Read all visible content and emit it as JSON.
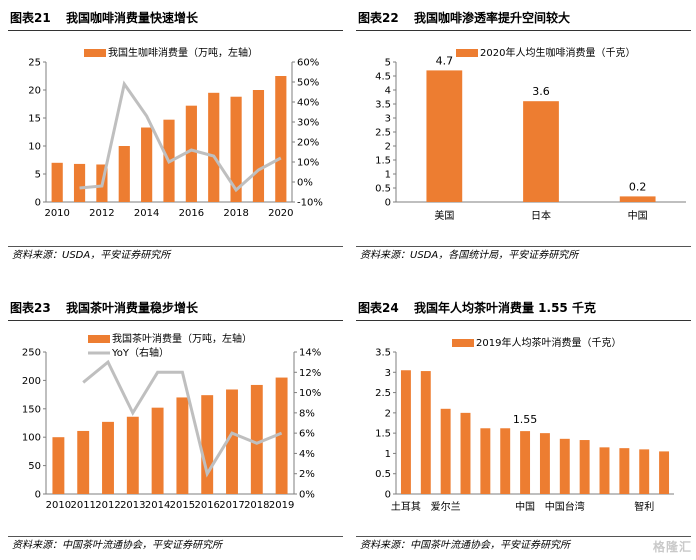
{
  "colors": {
    "bar": "#ED7D31",
    "line": "#BFBFBF",
    "axis": "#7F7F7F"
  },
  "watermark": "格隆汇",
  "panels": [
    {
      "num": "图表21",
      "title": "我国咖啡消费量快速增长",
      "source": "资料来源：USDA，平安证券研究所"
    },
    {
      "num": "图表22",
      "title": "我国咖啡渗透率提升空间较大",
      "source": "资料来源：USDA，各国统计局，平安证券研究所"
    },
    {
      "num": "图表23",
      "title": "我国茶叶消费量稳步增长",
      "source": "资料来源：中国茶叶流通协会，平安证券研究所"
    },
    {
      "num": "图表24",
      "title": "我国年人均茶叶消费量 1.55 千克",
      "source": "资料来源：中国茶叶流通协会，平安证券研究所"
    }
  ],
  "chart_data": [
    {
      "type": "bar",
      "title": "我国咖啡消费量快速增长",
      "x": [
        2010,
        2011,
        2012,
        2013,
        2014,
        2015,
        2016,
        2017,
        2018,
        2019,
        2020
      ],
      "series": [
        {
          "name": "我国生咖啡消费量（万吨，左轴）",
          "type": "bar",
          "axis": "left",
          "values": [
            7.0,
            6.8,
            6.7,
            10.0,
            13.3,
            14.7,
            17.2,
            19.5,
            18.8,
            20.0,
            22.5
          ]
        },
        {
          "name": "YoY",
          "type": "line",
          "axis": "right",
          "values": [
            null,
            -3,
            -2,
            49,
            33,
            10,
            16,
            13,
            -4,
            6,
            12
          ]
        }
      ],
      "ylim_left": [
        0,
        25
      ],
      "yticks_left": [
        0,
        5,
        10,
        15,
        20,
        25
      ],
      "ylim_right": [
        -10,
        60
      ],
      "yticks_right": [
        "-10%",
        "0%",
        "10%",
        "20%",
        "30%",
        "40%",
        "50%",
        "60%"
      ],
      "xtick_labels": [
        "2010",
        "2012",
        "2014",
        "2016",
        "2018",
        "2020"
      ],
      "legend": "top-center",
      "grid": false
    },
    {
      "type": "bar",
      "title": "我国咖啡渗透率提升空间较大",
      "categories": [
        "美国",
        "日本",
        "中国"
      ],
      "series": [
        {
          "name": "2020年人均生咖啡消费量（千克）",
          "values": [
            4.7,
            3.6,
            0.2
          ]
        }
      ],
      "data_labels": [
        "4.7",
        "3.6",
        "0.2"
      ],
      "ylim": [
        0,
        5
      ],
      "yticks": [
        "0",
        "0.5",
        "1",
        "1.5",
        "2",
        "2.5",
        "3",
        "3.5",
        "4",
        "4.5",
        "5"
      ],
      "legend": "top-center",
      "grid": false
    },
    {
      "type": "bar",
      "title": "我国茶叶消费量稳步增长",
      "x": [
        2010,
        2011,
        2012,
        2013,
        2014,
        2015,
        2016,
        2017,
        2018,
        2019
      ],
      "series": [
        {
          "name": "我国茶叶消费量（万吨，左轴）",
          "type": "bar",
          "axis": "left",
          "values": [
            100,
            111,
            127,
            136,
            152,
            170,
            174,
            184,
            192,
            205
          ]
        },
        {
          "name": "YoY（右轴）",
          "type": "line",
          "axis": "right",
          "values": [
            null,
            11,
            13,
            8,
            12,
            12,
            2,
            6,
            5,
            6
          ]
        }
      ],
      "ylim_left": [
        0,
        250
      ],
      "yticks_left": [
        0,
        50,
        100,
        150,
        200,
        250
      ],
      "ylim_right": [
        0,
        14
      ],
      "yticks_right": [
        "0%",
        "2%",
        "4%",
        "6%",
        "8%",
        "10%",
        "12%",
        "14%"
      ],
      "xtick_labels": [
        "2010",
        "2011",
        "2012",
        "2013",
        "2014",
        "2015",
        "2016",
        "2017",
        "2018",
        "2019"
      ],
      "legend": "top-left",
      "grid": false
    },
    {
      "type": "bar",
      "title": "我国年人均茶叶消费量 1.55 千克",
      "categories_count": 14,
      "series": [
        {
          "name": "2019年人均茶叶消费量（千克）",
          "values": [
            3.05,
            3.03,
            2.1,
            2.0,
            1.62,
            1.62,
            1.55,
            1.5,
            1.36,
            1.33,
            1.15,
            1.13,
            1.1,
            1.05
          ]
        }
      ],
      "xtick_labels": [
        {
          "index": 0,
          "label": "土耳其"
        },
        {
          "index": 2,
          "label": "爱尔兰"
        },
        {
          "index": 6,
          "label": "中国"
        },
        {
          "index": 8,
          "label": "中国台湾"
        },
        {
          "index": 12,
          "label": "智利"
        }
      ],
      "data_labels": [
        {
          "index": 6,
          "label": "1.55"
        }
      ],
      "ylim": [
        0,
        3.5
      ],
      "yticks": [
        "0",
        "0.5",
        "1",
        "1.5",
        "2",
        "2.5",
        "3",
        "3.5"
      ],
      "legend": "top-center",
      "grid": false
    }
  ]
}
